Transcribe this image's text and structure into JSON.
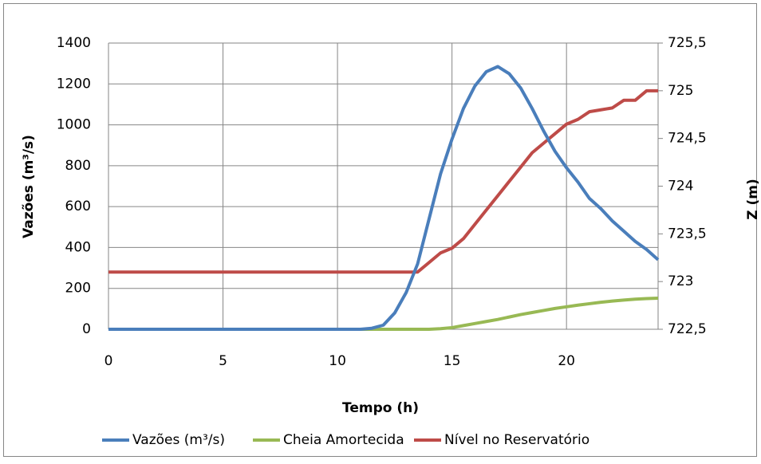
{
  "chart_data": {
    "type": "line",
    "x_label": "Tempo (h)",
    "y_label": "Vazões (m³/s)",
    "y2_label": "Z (m)",
    "x": [
      0,
      0.5,
      1,
      1.5,
      2,
      2.5,
      3,
      3.5,
      4,
      4.5,
      5,
      5.5,
      6,
      6.5,
      7,
      7.5,
      8,
      8.5,
      9,
      9.5,
      10,
      10.5,
      11,
      11.5,
      12,
      12.5,
      13,
      13.5,
      14,
      14.5,
      15,
      15.5,
      16,
      16.5,
      17,
      17.5,
      18,
      18.5,
      19,
      19.5,
      20,
      20.5,
      21,
      21.5,
      22,
      22.5,
      23,
      23.5,
      24
    ],
    "series": [
      {
        "name": "Vazões (m³/s)",
        "color": "#4a7ebb",
        "values": [
          0,
          0,
          0,
          0,
          0,
          0,
          0,
          0,
          0,
          0,
          0,
          0,
          0,
          0,
          0,
          0,
          0,
          0,
          0,
          0,
          0,
          0,
          0,
          5,
          20,
          80,
          180,
          320,
          540,
          760,
          930,
          1080,
          1190,
          1260,
          1285,
          1250,
          1180,
          1080,
          970,
          870,
          790,
          720,
          640,
          590,
          530,
          480,
          430,
          390,
          340
        ]
      },
      {
        "name": "Cheia Amortecida",
        "color": "#98b954",
        "values": [
          0,
          0,
          0,
          0,
          0,
          0,
          0,
          0,
          0,
          0,
          0,
          0,
          0,
          0,
          0,
          0,
          0,
          0,
          0,
          0,
          0,
          0,
          0,
          0,
          0,
          0,
          0,
          0,
          0,
          3,
          8,
          18,
          28,
          38,
          48,
          60,
          72,
          82,
          92,
          102,
          110,
          118,
          125,
          132,
          138,
          143,
          147,
          150,
          152
        ]
      },
      {
        "name": "Nível no Reservatório",
        "color": "#be4b48",
        "axis": "y2",
        "values": [
          723.1,
          723.1,
          723.1,
          723.1,
          723.1,
          723.1,
          723.1,
          723.1,
          723.1,
          723.1,
          723.1,
          723.1,
          723.1,
          723.1,
          723.1,
          723.1,
          723.1,
          723.1,
          723.1,
          723.1,
          723.1,
          723.1,
          723.1,
          723.1,
          723.1,
          723.1,
          723.1,
          723.1,
          723.2,
          723.3,
          723.35,
          723.45,
          723.6,
          723.75,
          723.9,
          724.05,
          724.2,
          724.35,
          724.45,
          724.55,
          724.65,
          724.7,
          724.78,
          724.8,
          724.82,
          724.9,
          724.9,
          725,
          725
        ]
      }
    ],
    "xlim": [
      0,
      24
    ],
    "xticks": [
      0,
      5,
      10,
      15,
      20
    ],
    "ylim": [
      0,
      1400
    ],
    "yticks": [
      0,
      200,
      400,
      600,
      800,
      1000,
      1200,
      1400
    ],
    "y2lim": [
      722.5,
      725.5
    ],
    "y2ticks": [
      {
        "value": 722.5,
        "label": "722,5"
      },
      723,
      {
        "value": 723.5,
        "label": "723,5"
      },
      724,
      {
        "value": 724.5,
        "label": "724,5"
      },
      725,
      {
        "value": 725.5,
        "label": "725,5"
      }
    ],
    "grid": true,
    "legend": "bottom"
  }
}
